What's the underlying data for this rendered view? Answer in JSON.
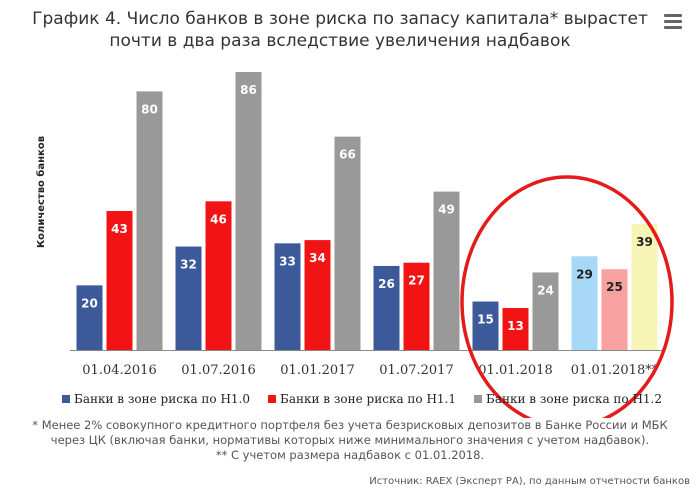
{
  "title": "График 4. Число банков в зоне риска по запасу капитала* вырастет почти в два раза вследствие увеличения надбавок",
  "footnote_1": "* Менее 2% совокупного кредитного портфеля без учета безрисковых депозитов в Банке России и МБК через ЦК (включая банки, нормативы которых ниже минимального значения с учетом надбавок).",
  "footnote_2": "** С учетом размера надбавок с 01.01.2018.",
  "source": "Источник: RAEX (Эксперт РА), по данным отчетности банков",
  "menu_icon": "hamburger-menu-icon",
  "chart_data": {
    "type": "bar",
    "ylabel": "Количество банков",
    "xlabel": "",
    "categories": [
      "01.04.2016",
      "01.07.2016",
      "01.01.2017",
      "01.07.2017",
      "01.01.2018",
      "01.01.2018**"
    ],
    "series": [
      {
        "name": "Банки в зоне риска по Н1.0",
        "color": "#3c5a99",
        "values": [
          20,
          32,
          33,
          26,
          15,
          29
        ]
      },
      {
        "name": "Банки в зоне риска по Н1.1",
        "color": "#f21414",
        "values": [
          43,
          46,
          34,
          27,
          13,
          25
        ]
      },
      {
        "name": "Банки в зоне риска по Н1.2",
        "color": "#999999",
        "values": [
          80,
          86,
          66,
          49,
          24,
          39
        ]
      }
    ],
    "highlight_colors": [
      "#a8d8f8",
      "#f9a1a1",
      "#f7f5b6"
    ],
    "ylim": [
      0,
      86
    ],
    "grid": false,
    "legend_position": "bottom",
    "annotation": "red circle around 01.01.2018 and 01.01.2018** groups"
  }
}
